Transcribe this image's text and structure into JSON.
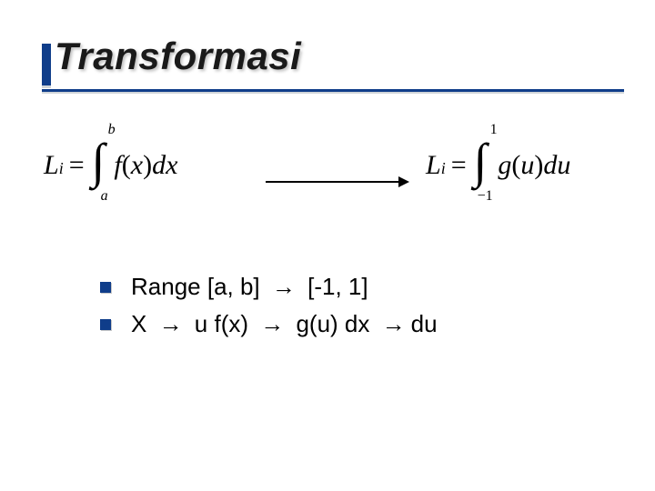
{
  "title": "Transformasi",
  "colors": {
    "accent": "#0f3d8a",
    "shadow": "#d0d4d8",
    "text": "#000000",
    "title_text": "#1a1a1a",
    "background": "#ffffff"
  },
  "formulas": {
    "left": {
      "lhs_var": "L",
      "lhs_sub": "i",
      "eq": "=",
      "int_lower": "a",
      "int_upper": "b",
      "integrand_fn": "f",
      "integrand_arg": "x",
      "differential": "dx"
    },
    "right": {
      "lhs_var": "L",
      "lhs_sub": "i",
      "eq": "=",
      "int_lower": "−1",
      "int_upper": "1",
      "integrand_fn": "g",
      "integrand_arg": "u",
      "differential": "du"
    }
  },
  "arrow": {
    "length": 150,
    "stroke": "#000000",
    "stroke_width": 2
  },
  "bullets": [
    {
      "parts": [
        {
          "t": "Range [a, b] "
        },
        {
          "t": "→",
          "cls": "arr"
        },
        {
          "t": " [-1, 1]"
        }
      ]
    },
    {
      "parts": [
        {
          "t": "X "
        },
        {
          "t": "→",
          "cls": "arr"
        },
        {
          "t": " u   f(x) "
        },
        {
          "t": "→",
          "cls": "arr"
        },
        {
          "t": " g(u)  dx "
        },
        {
          "t": "→",
          "cls": "arr"
        },
        {
          "t": "du"
        }
      ]
    }
  ]
}
